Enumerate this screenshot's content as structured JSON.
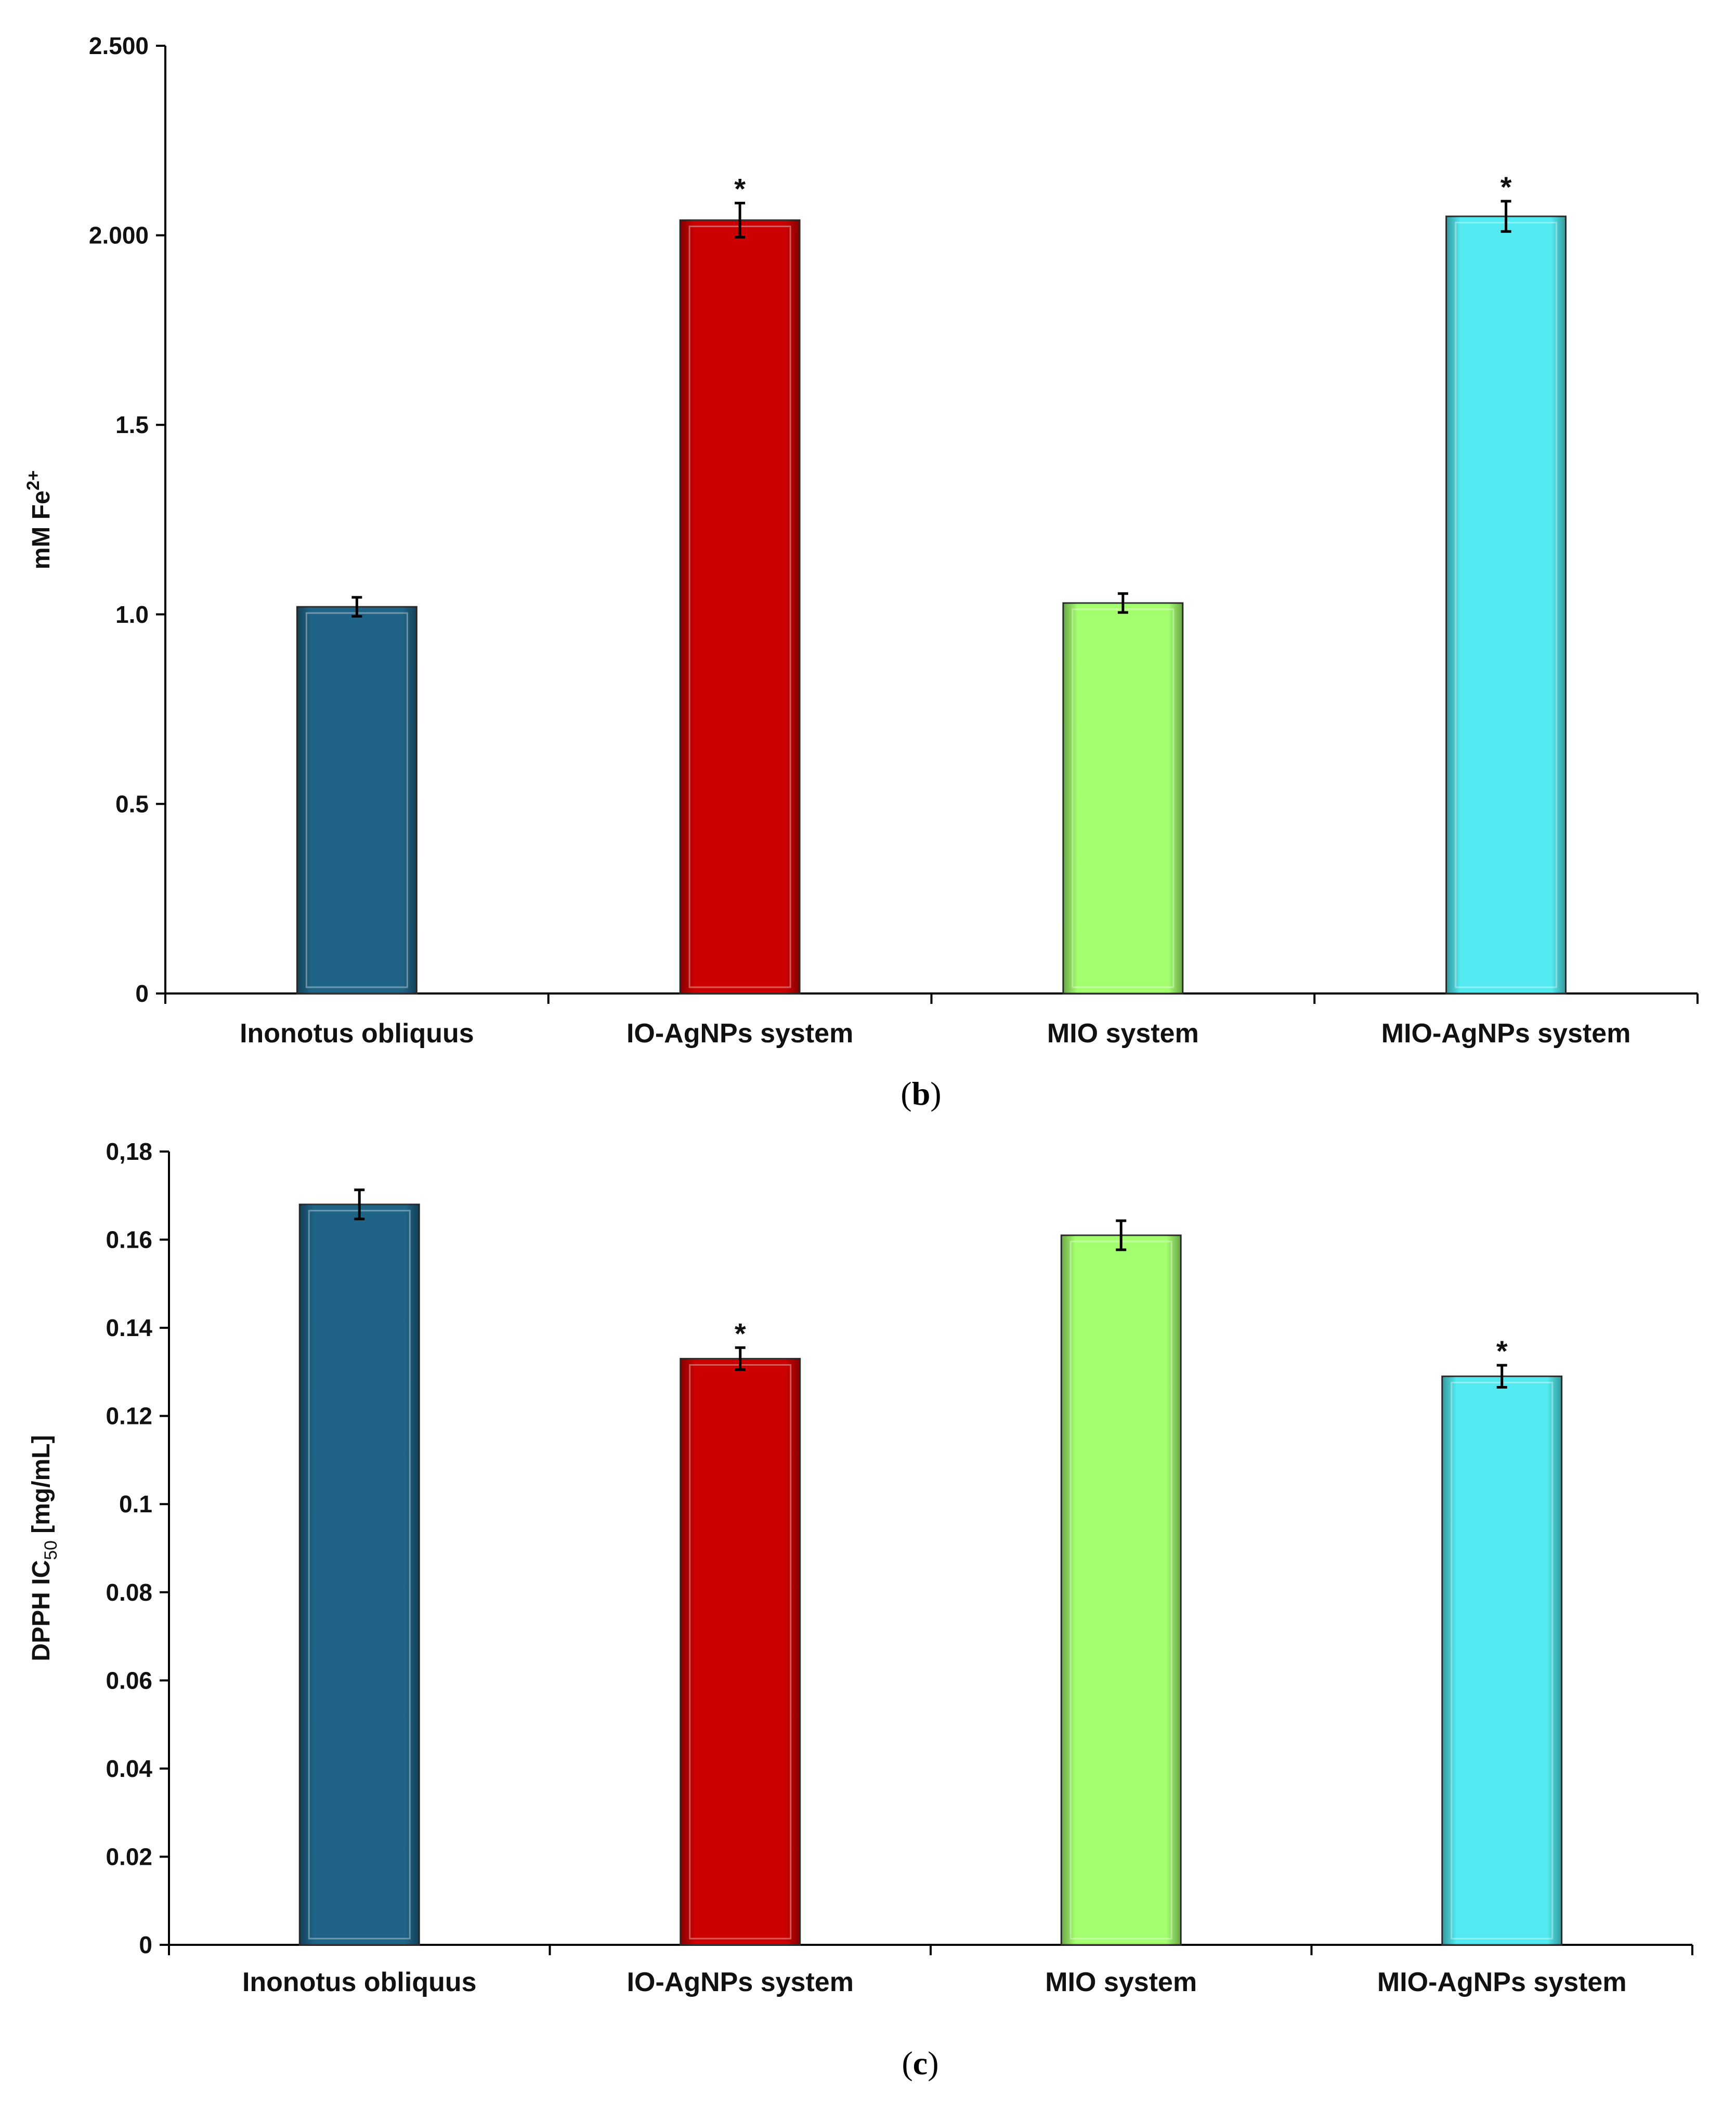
{
  "chart_data": [
    {
      "type": "bar",
      "panel_label": "b",
      "ylabel": "mM Fe",
      "ylabel_sup": "2+",
      "categories": [
        "Inonotus obliquus",
        "IO-AgNPs system",
        "MIO system",
        "MIO-AgNPs system"
      ],
      "values": [
        1.02,
        2.04,
        1.03,
        2.05
      ],
      "errors": [
        0.025,
        0.045,
        0.025,
        0.04
      ],
      "significance": [
        "",
        "*",
        "",
        "*"
      ],
      "ylim": [
        0,
        2.5
      ],
      "yticks": [
        0,
        0.5,
        1.0,
        1.5,
        2.0,
        2.5
      ],
      "ytick_labels": [
        "0",
        "0.5",
        "1.0",
        "1.5",
        "2.000",
        "2.500"
      ],
      "colors": [
        "#1f6487",
        "#cc0000",
        "#a4ff6e",
        "#52eaf0"
      ]
    },
    {
      "type": "bar",
      "panel_label": "c",
      "ylabel": "DPPH IC",
      "ylabel_sub": "50",
      "ylabel_unit": "[mg/mL]",
      "categories": [
        "Inonotus obliquus",
        "IO-AgNPs system",
        "MIO system",
        "MIO-AgNPs system"
      ],
      "values": [
        0.168,
        0.133,
        0.161,
        0.129
      ],
      "errors": [
        0.0033,
        0.0025,
        0.0033,
        0.0025
      ],
      "significance": [
        "",
        "*",
        "",
        "*"
      ],
      "ylim": [
        0,
        0.18
      ],
      "yticks": [
        0,
        0.02,
        0.04,
        0.06,
        0.08,
        0.1,
        0.12,
        0.14,
        0.16,
        0.18
      ],
      "ytick_labels": [
        "0",
        "0.02",
        "0.04",
        "0.06",
        "0.08",
        "0.1",
        "0.12",
        "0.14",
        "0.16",
        "0,18"
      ],
      "colors": [
        "#1f6487",
        "#cc0000",
        "#a4ff6e",
        "#52eaf0"
      ]
    }
  ]
}
